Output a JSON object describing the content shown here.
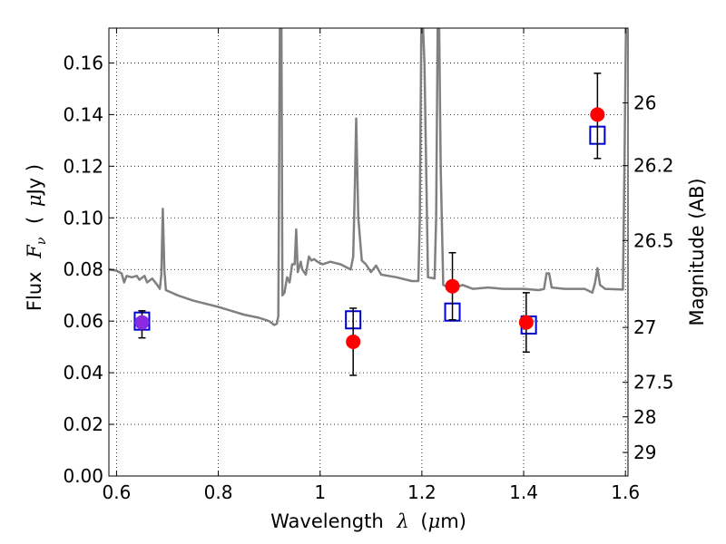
{
  "chart_data": {
    "type": "scatter",
    "xlabel": "Wavelength",
    "xlabel_symbol": "λ",
    "xlabel_unit_pre": "(",
    "xlabel_mu": "μ",
    "xlabel_unit_post": "m)",
    "ylabel": "Flux",
    "ylabel_symbol": "F",
    "ylabel_sub": "ν",
    "ylabel_unit_pre": "(",
    "ylabel_mu": "μ",
    "ylabel_unit_post": "Jy )",
    "y2label": "Magnitude (AB)",
    "xlim": [
      0.585,
      1.605
    ],
    "ylim": [
      0.0,
      0.1735
    ],
    "grid": true,
    "xticks": [
      {
        "value": 0.6,
        "label": "0.6"
      },
      {
        "value": 0.8,
        "label": "0.8"
      },
      {
        "value": 1.0,
        "label": "1"
      },
      {
        "value": 1.2,
        "label": "1.2"
      },
      {
        "value": 1.4,
        "label": "1.4"
      },
      {
        "value": 1.6,
        "label": "1.6"
      }
    ],
    "yticks": [
      {
        "value": 0.0,
        "label": "0.00"
      },
      {
        "value": 0.02,
        "label": "0.02"
      },
      {
        "value": 0.04,
        "label": "0.04"
      },
      {
        "value": 0.06,
        "label": "0.06"
      },
      {
        "value": 0.08,
        "label": "0.08"
      },
      {
        "value": 0.1,
        "label": "0.10"
      },
      {
        "value": 0.12,
        "label": "0.12"
      },
      {
        "value": 0.14,
        "label": "0.14"
      },
      {
        "value": 0.16,
        "label": "0.16"
      }
    ],
    "y2ticks": [
      {
        "mag": 26,
        "label": "26"
      },
      {
        "mag": 26.2,
        "label": "26.2"
      },
      {
        "mag": 26.5,
        "label": "26.5"
      },
      {
        "mag": 27,
        "label": "27"
      },
      {
        "mag": 27.5,
        "label": "27.5"
      },
      {
        "mag": 28,
        "label": "28"
      },
      {
        "mag": 29,
        "label": "29"
      }
    ],
    "series": [
      {
        "kind": "model_spectrum",
        "color": "#808080",
        "points": [
          [
            0.585,
            0.08
          ],
          [
            0.6,
            0.0795
          ],
          [
            0.61,
            0.0785
          ],
          [
            0.615,
            0.075
          ],
          [
            0.62,
            0.0775
          ],
          [
            0.63,
            0.077
          ],
          [
            0.64,
            0.0775
          ],
          [
            0.645,
            0.076
          ],
          [
            0.655,
            0.0775
          ],
          [
            0.66,
            0.075
          ],
          [
            0.67,
            0.0765
          ],
          [
            0.68,
            0.074
          ],
          [
            0.685,
            0.0725
          ],
          [
            0.688,
            0.078
          ],
          [
            0.691,
            0.1035
          ],
          [
            0.694,
            0.08
          ],
          [
            0.697,
            0.072
          ],
          [
            0.72,
            0.07
          ],
          [
            0.75,
            0.068
          ],
          [
            0.8,
            0.0655
          ],
          [
            0.85,
            0.0625
          ],
          [
            0.88,
            0.0613
          ],
          [
            0.9,
            0.06
          ],
          [
            0.91,
            0.0585
          ],
          [
            0.915,
            0.059
          ],
          [
            0.918,
            0.062
          ],
          [
            0.921,
            0.175
          ],
          [
            0.924,
            0.175
          ],
          [
            0.926,
            0.07
          ],
          [
            0.93,
            0.071
          ],
          [
            0.935,
            0.077
          ],
          [
            0.94,
            0.075
          ],
          [
            0.945,
            0.082
          ],
          [
            0.95,
            0.082
          ],
          [
            0.953,
            0.0955
          ],
          [
            0.956,
            0.079
          ],
          [
            0.962,
            0.083
          ],
          [
            0.965,
            0.08
          ],
          [
            0.972,
            0.078
          ],
          [
            0.978,
            0.085
          ],
          [
            0.983,
            0.0835
          ],
          [
            0.988,
            0.084
          ],
          [
            0.995,
            0.083
          ],
          [
            1.005,
            0.082
          ],
          [
            1.02,
            0.083
          ],
          [
            1.04,
            0.082
          ],
          [
            1.06,
            0.08
          ],
          [
            1.065,
            0.085
          ],
          [
            1.068,
            0.11
          ],
          [
            1.071,
            0.1385
          ],
          [
            1.075,
            0.1
          ],
          [
            1.082,
            0.0835
          ],
          [
            1.09,
            0.082
          ],
          [
            1.1,
            0.079
          ],
          [
            1.11,
            0.0815
          ],
          [
            1.12,
            0.078
          ],
          [
            1.15,
            0.077
          ],
          [
            1.18,
            0.0755
          ],
          [
            1.193,
            0.0755
          ],
          [
            1.196,
            0.1
          ],
          [
            1.199,
            0.175
          ],
          [
            1.202,
            0.175
          ],
          [
            1.205,
            0.16
          ],
          [
            1.212,
            0.077
          ],
          [
            1.225,
            0.0765
          ],
          [
            1.228,
            0.1
          ],
          [
            1.231,
            0.175
          ],
          [
            1.234,
            0.175
          ],
          [
            1.237,
            0.12
          ],
          [
            1.242,
            0.074
          ],
          [
            1.26,
            0.0725
          ],
          [
            1.28,
            0.074
          ],
          [
            1.3,
            0.0725
          ],
          [
            1.33,
            0.073
          ],
          [
            1.36,
            0.0725
          ],
          [
            1.4,
            0.0725
          ],
          [
            1.43,
            0.072
          ],
          [
            1.44,
            0.0725
          ],
          [
            1.445,
            0.0785
          ],
          [
            1.45,
            0.0785
          ],
          [
            1.455,
            0.073
          ],
          [
            1.48,
            0.0725
          ],
          [
            1.52,
            0.0725
          ],
          [
            1.535,
            0.071
          ],
          [
            1.54,
            0.0745
          ],
          [
            1.545,
            0.0805
          ],
          [
            1.55,
            0.074
          ],
          [
            1.56,
            0.0725
          ],
          [
            1.595,
            0.0722
          ],
          [
            1.598,
            0.12
          ],
          [
            1.601,
            0.175
          ]
        ]
      },
      {
        "kind": "model_photometry",
        "marker": "open-square",
        "color": "#0000cc",
        "points": [
          [
            0.65,
            0.06
          ],
          [
            1.065,
            0.0605
          ],
          [
            1.26,
            0.0635
          ],
          [
            1.41,
            0.0585
          ],
          [
            1.545,
            0.132
          ]
        ]
      },
      {
        "kind": "observed_photometry",
        "marker": "filled-circle",
        "color": "#ff0000",
        "error_color": "#000000",
        "points": [
          {
            "x": 0.65,
            "y": 0.0595,
            "err_lo": 0.0535,
            "err_hi": 0.064,
            "color": "#8a2be2"
          },
          {
            "x": 1.065,
            "y": 0.052,
            "err_lo": 0.039,
            "err_hi": 0.065
          },
          {
            "x": 1.26,
            "y": 0.0735,
            "err_lo": 0.0605,
            "err_hi": 0.0865
          },
          {
            "x": 1.405,
            "y": 0.0595,
            "err_lo": 0.048,
            "err_hi": 0.071
          },
          {
            "x": 1.545,
            "y": 0.14,
            "err_lo": 0.123,
            "err_hi": 0.156
          }
        ]
      }
    ]
  }
}
